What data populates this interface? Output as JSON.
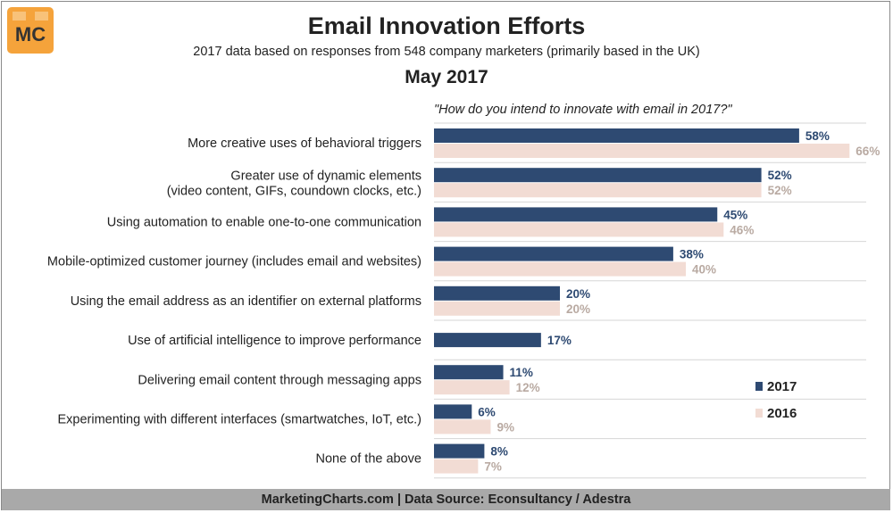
{
  "header": {
    "logo_text": "MC",
    "title": "Email Innovation Efforts",
    "subtitle": "2017 data based on responses from 548 company marketers (primarily based in the UK)",
    "date": "May 2017",
    "question": "\"How do you intend to innovate with email in 2017?\""
  },
  "footer": {
    "text": "MarketingCharts.com | Data Source: Econsultancy / Adestra"
  },
  "colors": {
    "series_2017": "#2e4a72",
    "series_2016": "#f2dcd4",
    "label_2016": "#b9aaa2",
    "gridline": "#d6d6d6",
    "footer_bg": "#a9a9a9"
  },
  "chart_data": {
    "type": "bar",
    "orientation": "horizontal",
    "title": "Email Innovation Efforts",
    "categories": [
      [
        "More creative uses of behavioral triggers"
      ],
      [
        "Greater use of dynamic elements",
        "(video content, GIFs, coundown clocks, etc.)"
      ],
      [
        "Using automation to enable one-to-one communication"
      ],
      [
        "Mobile-optimized customer journey (includes email and websites)"
      ],
      [
        "Using the email address as an identifier on external platforms"
      ],
      [
        "Use of artificial intelligence to improve performance"
      ],
      [
        "Delivering email content through messaging apps"
      ],
      [
        "Experimenting with different interfaces (smartwatches, IoT, etc.)"
      ],
      [
        "None of the above"
      ]
    ],
    "series": [
      {
        "name": "2017",
        "values": [
          58,
          52,
          45,
          38,
          20,
          17,
          11,
          6,
          8
        ],
        "labels": [
          "58%",
          "52%",
          "45%",
          "38%",
          "20%",
          "17%",
          "11%",
          "6%",
          "8%"
        ]
      },
      {
        "name": "2016",
        "values": [
          66,
          52,
          46,
          40,
          20,
          null,
          12,
          9,
          7
        ],
        "labels": [
          "66%",
          "52%",
          "46%",
          "40%",
          "20%",
          "",
          "12%",
          "9%",
          "7%"
        ]
      }
    ],
    "unit": "%",
    "xlim": [
      0,
      66
    ],
    "legend_position": "bottom-right",
    "grid": "horizontal separators between categories"
  }
}
